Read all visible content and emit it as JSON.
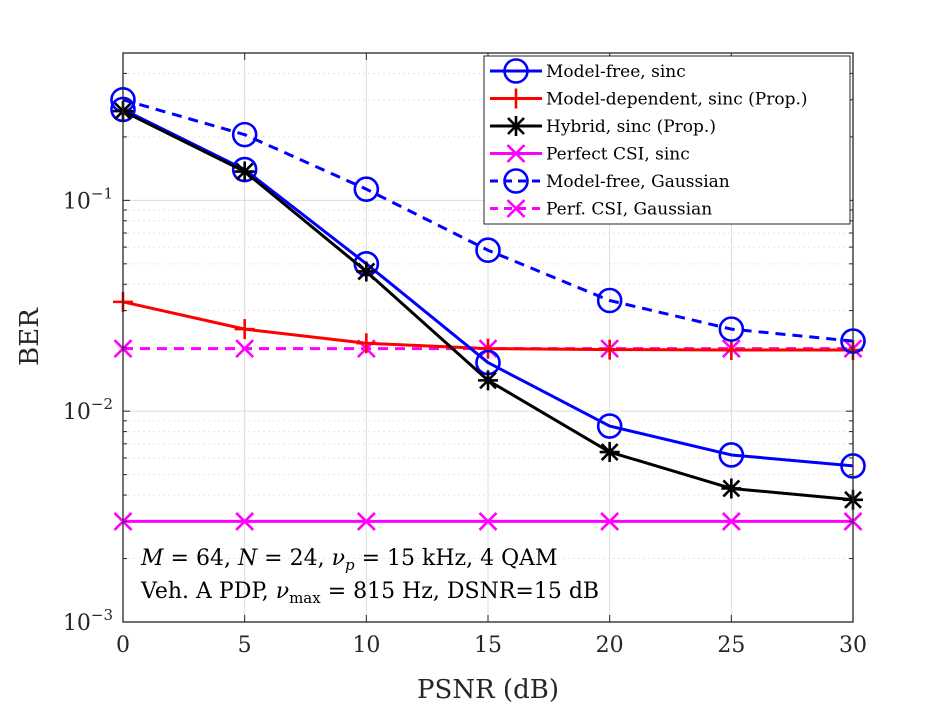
{
  "chart_data": {
    "type": "line",
    "yscale": "log",
    "xlabel": "PSNR (dB)",
    "ylabel": "BER",
    "xlim": [
      0,
      30
    ],
    "ylim": [
      0.001,
      0.5
    ],
    "x_ticks": [
      0,
      5,
      10,
      15,
      20,
      25,
      30
    ],
    "x_tick_labels": [
      "0",
      "5",
      "10",
      "15",
      "20",
      "25",
      "30"
    ],
    "y_ticks": [
      0.001,
      0.01,
      0.1
    ],
    "y_tick_labels": [
      {
        "base": "10",
        "exp": "−3"
      },
      {
        "base": "10",
        "exp": "−2"
      },
      {
        "base": "10",
        "exp": "−1"
      }
    ],
    "grid": true,
    "legend_position": "top-right",
    "x": [
      0,
      5,
      10,
      15,
      20,
      25,
      30
    ],
    "series": [
      {
        "name": "Model-free, sinc",
        "color": "#0000ff",
        "line": "solid",
        "marker": "circle",
        "values": [
          0.27,
          0.14,
          0.05,
          0.017,
          0.0085,
          0.0062,
          0.0055
        ]
      },
      {
        "name": "Model-dependent, sinc (Prop.)",
        "color": "#ff0000",
        "line": "solid",
        "marker": "plus",
        "values": [
          0.033,
          0.0245,
          0.021,
          0.0198,
          0.0196,
          0.0195,
          0.0195
        ]
      },
      {
        "name": "Hybrid, sinc (Prop.)",
        "color": "#000000",
        "line": "solid",
        "marker": "asterisk",
        "values": [
          0.265,
          0.137,
          0.046,
          0.014,
          0.0064,
          0.0043,
          0.0038
        ]
      },
      {
        "name": "Perfect CSI, sinc",
        "color": "#ff00ff",
        "line": "solid",
        "marker": "x",
        "values": [
          0.003,
          0.003,
          0.003,
          0.003,
          0.003,
          0.003,
          0.003
        ]
      },
      {
        "name": "Model-free, Gaussian",
        "color": "#0000ff",
        "line": "dashed",
        "marker": "circle",
        "values": [
          0.3,
          0.205,
          0.113,
          0.058,
          0.0335,
          0.0245,
          0.0215
        ]
      },
      {
        "name": "Perf. CSI, Gaussian",
        "color": "#ff00ff",
        "line": "dashed",
        "marker": "x",
        "values": [
          0.0198,
          0.0198,
          0.0198,
          0.0198,
          0.0198,
          0.0198,
          0.0198
        ]
      }
    ],
    "annotations": [
      "M = 64, N = 24, ν_p = 15 kHz, 4 QAM",
      "Veh. A PDP, ν_max = 815 Hz, DSNR=15 dB"
    ]
  },
  "annotation_parts": {
    "line1": {
      "M": "M",
      "eq1": " = 64, ",
      "N": "N",
      "eq2": " = 24, ",
      "nu": "ν",
      "sub": "p",
      "eq3": " = 15 kHz, 4 QAM"
    },
    "line2": {
      "pre": "Veh. A PDP, ",
      "nu": "ν",
      "sub": "max",
      "eq": " = 815 Hz, DSNR=15 dB"
    }
  }
}
